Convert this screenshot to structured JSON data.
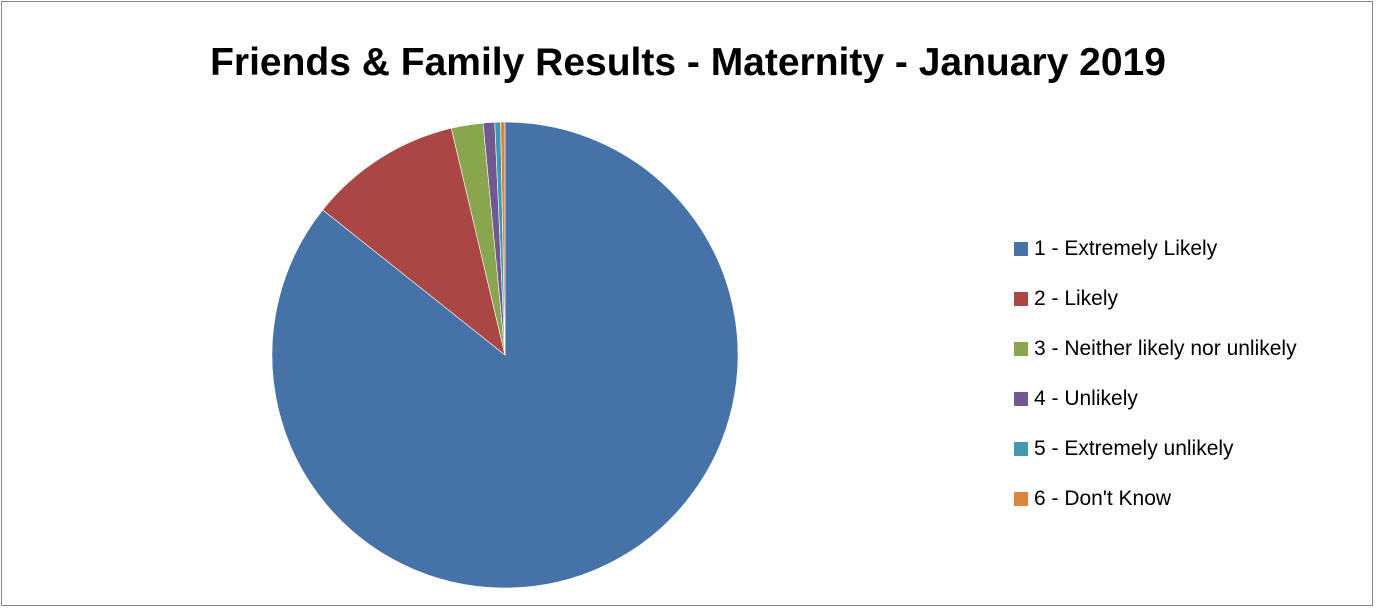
{
  "chart_data": {
    "type": "pie",
    "title": "Friends & Family Results - Maternity - January 2019",
    "legend_position": "right",
    "slices": [
      {
        "label": "1 - Extremely Likely",
        "value": 85.7,
        "color": "#4572A7"
      },
      {
        "label": "2 - Likely",
        "value": 10.6,
        "color": "#AA4643"
      },
      {
        "label": "3 - Neither likely nor unlikely",
        "value": 2.2,
        "color": "#89A54E"
      },
      {
        "label": "4 - Unlikely",
        "value": 0.8,
        "color": "#71588F"
      },
      {
        "label": "5 - Extremely unlikely",
        "value": 0.4,
        "color": "#4198AF"
      },
      {
        "label": "6 - Don't Know",
        "value": 0.3,
        "color": "#DB843D"
      }
    ]
  }
}
